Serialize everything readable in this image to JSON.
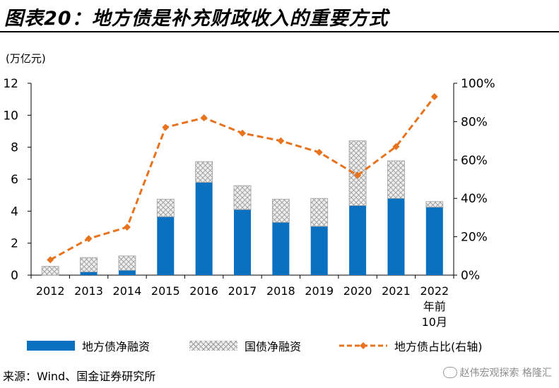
{
  "title": "图表20：地方债是补充财政收入的重要方式",
  "unit_label": "(万亿元)",
  "source": "来源：Wind、国金证券研究所",
  "watermark": "赵伟宏观探索  格隆汇",
  "colors": {
    "local_net": "#0a70c0",
    "national_net": "#d9d9d9",
    "ratio_line": "#e8731e"
  },
  "chart_data": {
    "type": "bar",
    "categories": [
      "2012",
      "2013",
      "2014",
      "2015",
      "2016",
      "2017",
      "2018",
      "2019",
      "2020",
      "2021",
      "2022年前10月"
    ],
    "category_labels": [
      [
        "2012"
      ],
      [
        "2013"
      ],
      [
        "2014"
      ],
      [
        "2015"
      ],
      [
        "2016"
      ],
      [
        "2017"
      ],
      [
        "2018"
      ],
      [
        "2019"
      ],
      [
        "2020"
      ],
      [
        "2021"
      ],
      [
        "2022",
        "年前",
        "10月"
      ]
    ],
    "stacked": true,
    "series": [
      {
        "name": "地方债净融资",
        "kind": "bar",
        "axis": "left",
        "values": [
          0.0,
          0.2,
          0.3,
          3.65,
          5.8,
          4.1,
          3.3,
          3.05,
          4.35,
          4.8,
          4.25
        ]
      },
      {
        "name": "国债净融资",
        "kind": "bar",
        "axis": "left",
        "values": [
          0.55,
          0.9,
          0.9,
          1.1,
          1.3,
          1.5,
          1.45,
          1.75,
          4.05,
          2.35,
          0.35
        ]
      },
      {
        "name": "地方债占比(右轴)",
        "kind": "line",
        "axis": "right",
        "values": [
          8,
          19,
          25,
          77,
          82,
          74,
          70,
          64,
          52,
          67,
          93
        ]
      }
    ],
    "y_left": {
      "min": 0,
      "max": 12,
      "ticks": [
        0,
        2,
        4,
        6,
        8,
        10,
        12
      ]
    },
    "y_right": {
      "min": 0,
      "max": 100,
      "ticks": [
        "0%",
        "20%",
        "40%",
        "60%",
        "80%",
        "100%"
      ]
    },
    "grid": false,
    "legend_position": "bottom"
  },
  "legend": {
    "local": "地方债净融资",
    "national": "国债净融资",
    "ratio": "地方债占比(右轴)"
  }
}
